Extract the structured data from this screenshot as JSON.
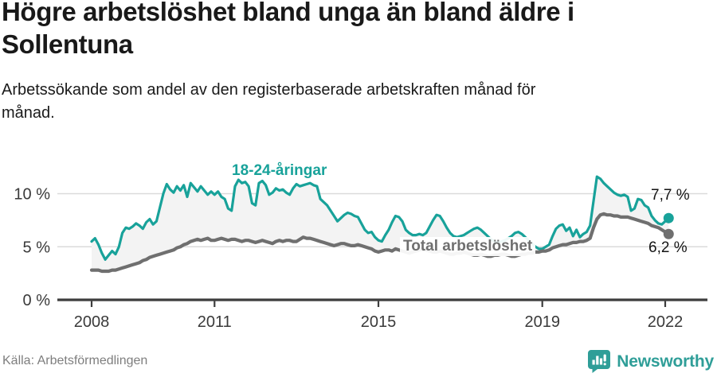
{
  "header": {
    "title": "Högre arbetslöshet bland unga än bland äldre i\nSollentuna",
    "subtitle": "Arbetssökande som andel av den registerbaserade arbetskraften månad för\nmånad."
  },
  "chart_data": {
    "type": "line",
    "unit": "%",
    "frequency": "monthly",
    "x_start": "2008-01",
    "x_end": "2022-02",
    "xlim_years": [
      2008,
      2022.17
    ],
    "ylim": [
      0,
      12.2
    ],
    "grid": "horizontal",
    "x_ticks": [
      2008,
      2011,
      2015,
      2019,
      2022
    ],
    "y_ticks": [
      {
        "value": 0,
        "label": "0 %"
      },
      {
        "value": 5,
        "label": "5 %"
      },
      {
        "value": 10,
        "label": "10 %"
      }
    ],
    "area_fill_between": "#f3f3f3",
    "gridline_color": "#dbdbdb",
    "axis_color": "#3d3d3d",
    "series": [
      {
        "name": "18-24-åringar",
        "color": "#18a29a",
        "end_label": "7,7 %",
        "end_value": 7.7,
        "values": [
          5.5,
          5.8,
          5.2,
          4.4,
          3.8,
          4.2,
          4.6,
          4.3,
          5.0,
          6.3,
          6.8,
          6.7,
          6.9,
          7.2,
          7.0,
          6.7,
          7.3,
          7.6,
          7.1,
          7.4,
          8.7,
          10.0,
          10.9,
          10.4,
          10.1,
          10.7,
          10.3,
          10.8,
          9.7,
          11.0,
          10.6,
          10.2,
          10.7,
          10.3,
          9.9,
          10.2,
          9.9,
          10.2,
          9.7,
          9.5,
          8.6,
          8.4,
          10.7,
          11.3,
          11.0,
          11.1,
          10.7,
          9.1,
          8.9,
          11.0,
          11.2,
          10.8,
          9.9,
          10.1,
          10.5,
          10.3,
          10.4,
          10.1,
          9.9,
          10.5,
          10.9,
          10.7,
          10.8,
          10.9,
          11.0,
          10.8,
          10.7,
          9.5,
          9.2,
          8.9,
          8.4,
          7.9,
          7.4,
          7.7,
          8.0,
          8.2,
          8.1,
          7.9,
          7.8,
          7.2,
          6.6,
          6.3,
          6.4,
          5.9,
          5.6,
          5.5,
          6.1,
          6.6,
          7.3,
          7.9,
          7.8,
          7.4,
          6.6,
          6.3,
          6.1,
          6.1,
          6.2,
          6.1,
          6.3,
          6.9,
          7.5,
          8.0,
          7.9,
          7.4,
          6.8,
          6.3,
          6.0,
          5.9,
          6.0,
          6.1,
          6.3,
          6.5,
          6.7,
          6.8,
          6.6,
          6.3,
          6.0,
          5.7,
          5.5,
          5.4,
          5.5,
          5.6,
          5.8,
          6.0,
          6.3,
          6.4,
          6.2,
          5.9,
          5.6,
          5.3,
          5.0,
          4.8,
          4.8,
          5.0,
          5.2,
          6.0,
          6.7,
          7.0,
          7.1,
          6.5,
          6.8,
          6.0,
          6.6,
          5.9,
          6.2,
          6.4,
          7.0,
          9.3,
          11.6,
          11.4,
          11.0,
          10.7,
          10.4,
          10.1,
          9.9,
          9.8,
          9.9,
          9.7,
          8.4,
          8.6,
          9.5,
          9.4,
          8.9,
          8.7,
          7.9,
          7.5,
          7.2,
          7.1,
          7.4,
          7.7
        ]
      },
      {
        "name": "Total arbetslöshet",
        "color": "#6f6f6f",
        "end_label": "6,2 %",
        "end_value": 6.2,
        "values": [
          2.8,
          2.8,
          2.8,
          2.7,
          2.7,
          2.7,
          2.8,
          2.8,
          2.9,
          3.0,
          3.1,
          3.2,
          3.3,
          3.4,
          3.5,
          3.7,
          3.8,
          4.0,
          4.1,
          4.2,
          4.3,
          4.4,
          4.5,
          4.6,
          4.7,
          4.9,
          5.0,
          5.2,
          5.3,
          5.5,
          5.6,
          5.7,
          5.6,
          5.7,
          5.8,
          5.6,
          5.6,
          5.7,
          5.8,
          5.7,
          5.6,
          5.7,
          5.7,
          5.6,
          5.5,
          5.6,
          5.6,
          5.5,
          5.4,
          5.5,
          5.6,
          5.5,
          5.4,
          5.3,
          5.5,
          5.6,
          5.5,
          5.6,
          5.6,
          5.5,
          5.5,
          5.7,
          5.9,
          5.8,
          5.8,
          5.7,
          5.6,
          5.5,
          5.4,
          5.3,
          5.2,
          5.1,
          5.2,
          5.3,
          5.3,
          5.2,
          5.1,
          5.1,
          5.2,
          5.1,
          5.0,
          4.9,
          4.8,
          4.6,
          4.5,
          4.6,
          4.7,
          4.7,
          4.6,
          4.8,
          4.7,
          4.6,
          4.5,
          4.4,
          4.5,
          4.6,
          4.7,
          4.8,
          4.7,
          4.6,
          4.5,
          4.5,
          4.6,
          4.5,
          4.4,
          4.3,
          4.3,
          4.4,
          4.4,
          4.5,
          4.4,
          4.3,
          4.2,
          4.2,
          4.3,
          4.2,
          4.1,
          4.1,
          4.2,
          4.2,
          4.3,
          4.3,
          4.2,
          4.1,
          4.1,
          4.2,
          4.3,
          4.3,
          4.4,
          4.4,
          4.5,
          4.5,
          4.6,
          4.6,
          4.7,
          4.9,
          5.0,
          5.1,
          5.2,
          5.2,
          5.3,
          5.4,
          5.4,
          5.5,
          5.5,
          5.6,
          5.8,
          6.8,
          7.6,
          8.0,
          8.1,
          8.0,
          8.0,
          7.9,
          7.9,
          7.8,
          7.8,
          7.8,
          7.7,
          7.6,
          7.5,
          7.4,
          7.3,
          7.2,
          7.0,
          6.9,
          6.8,
          6.6,
          6.4,
          6.2
        ]
      }
    ]
  },
  "footer": {
    "source": "Källa: Arbetsförmedlingen",
    "brand": "Newsworthy",
    "brand_color": "#2f9e98"
  }
}
